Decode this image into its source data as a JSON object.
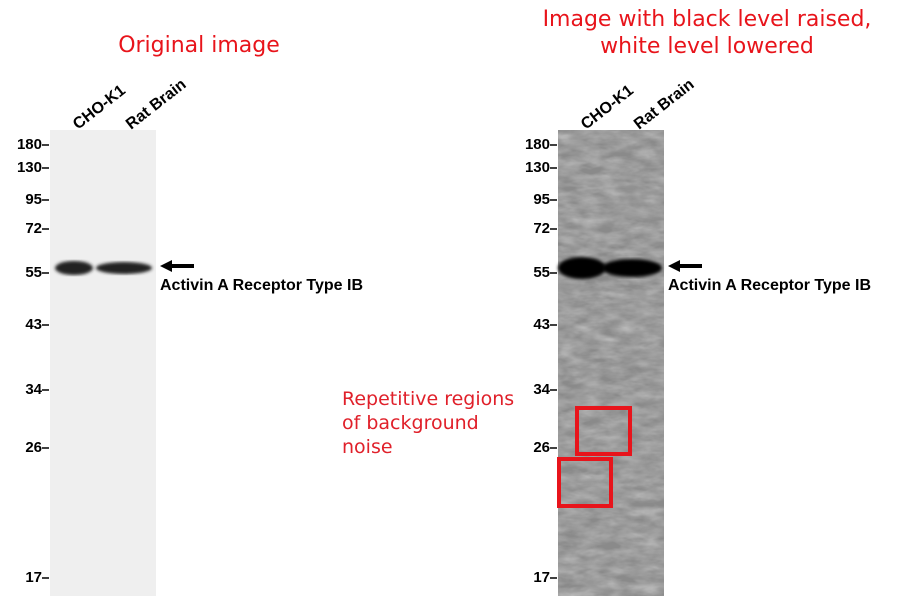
{
  "panels": [
    {
      "title": [
        "Original image"
      ],
      "lanes": [
        "CHO-K1",
        "Rat Brain"
      ],
      "markers": [
        "180",
        "130",
        "95",
        "72",
        "55",
        "43",
        "34",
        "26",
        "17"
      ],
      "band_label": "Activin A Receptor Type IB"
    },
    {
      "title": [
        "Image with black level raised,",
        "white level lowered"
      ],
      "lanes": [
        "CHO-K1",
        "Rat Brain"
      ],
      "markers": [
        "180",
        "130",
        "95",
        "72",
        "55",
        "43",
        "34",
        "26",
        "17"
      ],
      "band_label": "Activin A Receptor Type IB"
    }
  ],
  "annotation": [
    "Repetitive regions",
    "of background",
    "noise"
  ]
}
